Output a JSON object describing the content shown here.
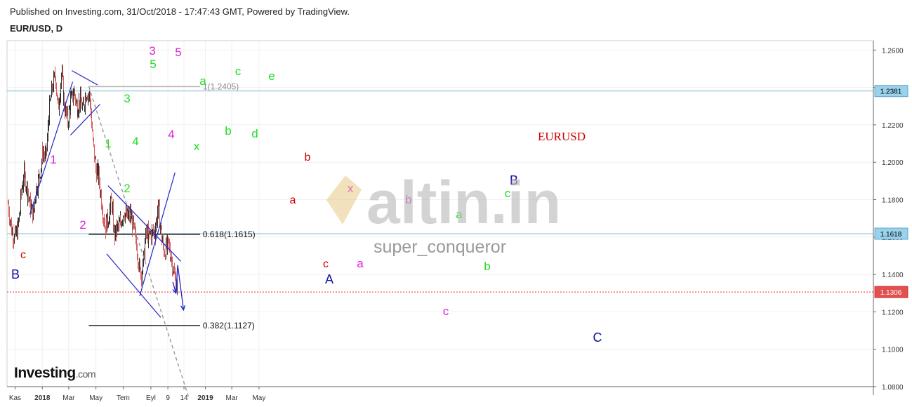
{
  "header": {
    "published": "Published on Investing.com, 31/Oct/2018 - 17:47:43 GMT, Powered by TradingView.",
    "symbol": "EUR/USD, D"
  },
  "logo": {
    "brand": "Investing",
    "domain": ".com"
  },
  "watermark": {
    "text": "altin.in",
    "user": "super_conqueror"
  },
  "colors": {
    "up_bar": "#333333",
    "down_bar": "#d66060",
    "trend": "#2323c8",
    "fib": "#000000",
    "price_line": "#e03030",
    "hline": "#7ab8d8",
    "magenta": "#e020d8",
    "green": "#22dd22",
    "red": "#cc0000",
    "blue": "#1010a0"
  },
  "chart_data": {
    "type": "ohlc",
    "title": "EURUSD",
    "y_axis": {
      "ylim": [
        1.08,
        1.265
      ],
      "ticks": [
        "1.0800",
        "1.1000",
        "1.1200",
        "1.1400",
        "1.1600",
        "1.1800",
        "1.2000",
        "1.2200",
        "1.2400",
        "1.2600"
      ]
    },
    "x_axis": {
      "tick_labels": [
        "Kas",
        "2018",
        "Mar",
        "May",
        "Tem",
        "Eyl",
        "9",
        "14",
        "2019",
        "Mar",
        "May"
      ],
      "bold": [
        "2018",
        "2019"
      ]
    },
    "price_badges": [
      "1.2381",
      "1.1618",
      "1.1306"
    ],
    "fib_levels": [
      {
        "label": "1(1.2405)",
        "value": 1.2405
      },
      {
        "label": "0.618(1.1615)",
        "value": 1.1615
      },
      {
        "label": "0.382(1.1127)",
        "value": 1.1127
      }
    ],
    "close_path": [
      {
        "date": "2017-10-16",
        "close": 1.178
      },
      {
        "date": "2017-10-23",
        "close": 1.164
      },
      {
        "date": "2017-10-30",
        "close": 1.159
      },
      {
        "date": "2017-11-06",
        "close": 1.164
      },
      {
        "date": "2017-11-13",
        "close": 1.179
      },
      {
        "date": "2017-11-20",
        "close": 1.194
      },
      {
        "date": "2017-11-27",
        "close": 1.186
      },
      {
        "date": "2017-12-04",
        "close": 1.177
      },
      {
        "date": "2017-12-11",
        "close": 1.172
      },
      {
        "date": "2017-12-18",
        "close": 1.186
      },
      {
        "date": "2017-12-25",
        "close": 1.193
      },
      {
        "date": "2018-01-01",
        "close": 1.206
      },
      {
        "date": "2018-01-08",
        "close": 1.202
      },
      {
        "date": "2018-01-15",
        "close": 1.225
      },
      {
        "date": "2018-01-22",
        "close": 1.239
      },
      {
        "date": "2018-01-29",
        "close": 1.247
      },
      {
        "date": "2018-02-05",
        "close": 1.228
      },
      {
        "date": "2018-02-12",
        "close": 1.248
      },
      {
        "date": "2018-02-19",
        "close": 1.23
      },
      {
        "date": "2018-02-26",
        "close": 1.222
      },
      {
        "date": "2018-03-05",
        "close": 1.232
      },
      {
        "date": "2018-03-12",
        "close": 1.238
      },
      {
        "date": "2018-03-19",
        "close": 1.229
      },
      {
        "date": "2018-03-26",
        "close": 1.233
      },
      {
        "date": "2018-04-02",
        "close": 1.228
      },
      {
        "date": "2018-04-09",
        "close": 1.238
      },
      {
        "date": "2018-04-16",
        "close": 1.235
      },
      {
        "date": "2018-04-23",
        "close": 1.214
      },
      {
        "date": "2018-04-30",
        "close": 1.196
      },
      {
        "date": "2018-05-07",
        "close": 1.193
      },
      {
        "date": "2018-05-14",
        "close": 1.177
      },
      {
        "date": "2018-05-21",
        "close": 1.165
      },
      {
        "date": "2018-05-28",
        "close": 1.17
      },
      {
        "date": "2018-06-04",
        "close": 1.18
      },
      {
        "date": "2018-06-11",
        "close": 1.161
      },
      {
        "date": "2018-06-18",
        "close": 1.165
      },
      {
        "date": "2018-06-25",
        "close": 1.168
      },
      {
        "date": "2018-07-02",
        "close": 1.174
      },
      {
        "date": "2018-07-09",
        "close": 1.17
      },
      {
        "date": "2018-07-16",
        "close": 1.172
      },
      {
        "date": "2018-07-23",
        "close": 1.165
      },
      {
        "date": "2018-07-30",
        "close": 1.158
      },
      {
        "date": "2018-08-06",
        "close": 1.141
      },
      {
        "date": "2018-08-13",
        "close": 1.142
      },
      {
        "date": "2018-08-20",
        "close": 1.162
      },
      {
        "date": "2018-08-27",
        "close": 1.161
      },
      {
        "date": "2018-09-03",
        "close": 1.162
      },
      {
        "date": "2018-09-10",
        "close": 1.163
      },
      {
        "date": "2018-09-17",
        "close": 1.176
      },
      {
        "date": "2018-09-24",
        "close": 1.16
      },
      {
        "date": "2018-10-01",
        "close": 1.152
      },
      {
        "date": "2018-10-08",
        "close": 1.156
      },
      {
        "date": "2018-10-15",
        "close": 1.151
      },
      {
        "date": "2018-10-22",
        "close": 1.14
      },
      {
        "date": "2018-10-29",
        "close": 1.133
      }
    ],
    "fib_fan_line": [
      {
        "date": "2018-04-15",
        "value": 1.2405
      },
      {
        "date": "2018-11-25",
        "value": 1.074
      }
    ],
    "trend_lines": [
      {
        "from": {
          "date": "2017-12-04",
          "value": 1.172
        },
        "to": {
          "date": "2018-03-10",
          "value": 1.243
        }
      },
      {
        "from": {
          "date": "2018-03-05",
          "value": 1.2145
        },
        "to": {
          "date": "2018-05-10",
          "value": 1.231
        }
      },
      {
        "from": {
          "date": "2018-03-08",
          "value": 1.249
        },
        "to": {
          "date": "2018-05-05",
          "value": 1.2413
        }
      },
      {
        "from": {
          "date": "2018-05-28",
          "value": 1.1875
        },
        "to": {
          "date": "2018-11-07",
          "value": 1.147
        }
      },
      {
        "from": {
          "date": "2018-05-25",
          "value": 1.151
        },
        "to": {
          "date": "2018-09-23",
          "value": 1.117
        }
      },
      {
        "from": {
          "date": "2018-08-07",
          "value": 1.1285
        },
        "to": {
          "date": "2018-10-25",
          "value": 1.1945
        }
      }
    ],
    "projection": [
      {
        "date": "2018-10-20",
        "value": 1.136
      },
      {
        "date": "2018-10-27",
        "value": 1.13
      },
      {
        "date": "2018-10-31",
        "value": 1.145
      },
      {
        "date": "2018-11-13",
        "value": 1.121
      }
    ],
    "wave_labels": [
      {
        "text": "1",
        "color": "magenta"
      },
      {
        "text": "2",
        "color": "magenta"
      },
      {
        "text": "3",
        "color": "magenta"
      },
      {
        "text": "4",
        "color": "magenta"
      },
      {
        "text": "5",
        "color": "magenta"
      },
      {
        "text": "1",
        "color": "green"
      },
      {
        "text": "2",
        "color": "green"
      },
      {
        "text": "3",
        "color": "green"
      },
      {
        "text": "4",
        "color": "green"
      },
      {
        "text": "5",
        "color": "green"
      },
      {
        "text": "a",
        "color": "green"
      },
      {
        "text": "c",
        "color": "green"
      },
      {
        "text": "e",
        "color": "green"
      },
      {
        "text": "x",
        "color": "green"
      },
      {
        "text": "b",
        "color": "green"
      },
      {
        "text": "d",
        "color": "green"
      },
      {
        "text": "c",
        "color": "red"
      },
      {
        "text": "B",
        "color": "blue"
      },
      {
        "text": "a",
        "color": "red"
      },
      {
        "text": "b",
        "color": "red"
      },
      {
        "text": "c",
        "color": "red"
      },
      {
        "text": "A",
        "color": "blue"
      },
      {
        "text": "x",
        "color": "magenta"
      },
      {
        "text": "a",
        "color": "magenta"
      },
      {
        "text": "b",
        "color": "magenta"
      },
      {
        "text": "c",
        "color": "magenta"
      },
      {
        "text": "a",
        "color": "green"
      },
      {
        "text": "b",
        "color": "green"
      },
      {
        "text": "c",
        "color": "green"
      },
      {
        "text": "B",
        "color": "blue"
      },
      {
        "text": "C",
        "color": "blue"
      }
    ]
  }
}
